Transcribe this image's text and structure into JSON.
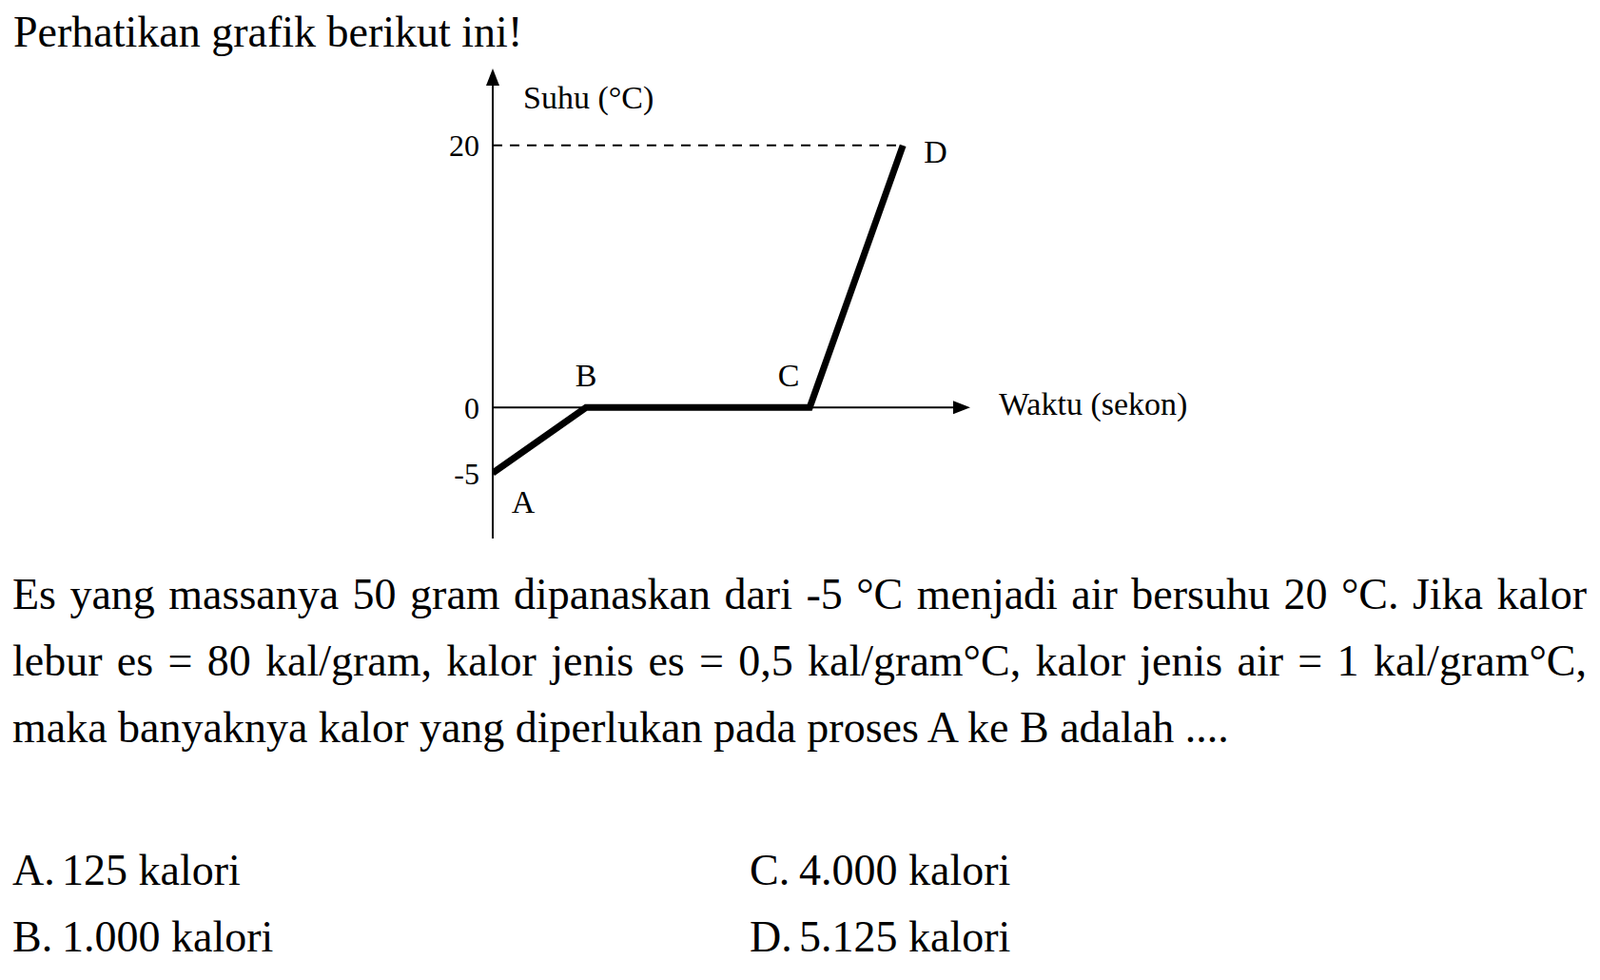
{
  "title": "Perhatikan grafik berikut ini!",
  "chart_data": {
    "type": "line",
    "y_label": "Suhu (°C)",
    "x_label": "Waktu (sekon)",
    "x": [
      0,
      1,
      3.4,
      4.4
    ],
    "values": [
      -5,
      0,
      0,
      20
    ],
    "point_labels": [
      "A",
      "B",
      "C",
      "D"
    ],
    "xlim": [
      0,
      5
    ],
    "ylim": [
      -10,
      25
    ],
    "yticks": [
      -5,
      0,
      20
    ],
    "tick_labels": "y",
    "color": "#000000"
  },
  "question": "Es yang massanya 50 gram dipanaskan dari -5 °C menjadi air bersuhu 20 °C. Jika kalor lebur es = 80 kal/gram, kalor jenis es = 0,5 kal/gram°C, kalor jenis air = 1 kal/gram°C, maka banyaknya kalor yang diperlukan pada proses A ke B adalah ....",
  "options": [
    {
      "letter": "A.",
      "text": "125 kalori"
    },
    {
      "letter": "B.",
      "text": "1.000 kalori"
    },
    {
      "letter": "C.",
      "text": "4.000 kalori"
    },
    {
      "letter": "D.",
      "text": "5.125 kalori"
    }
  ]
}
